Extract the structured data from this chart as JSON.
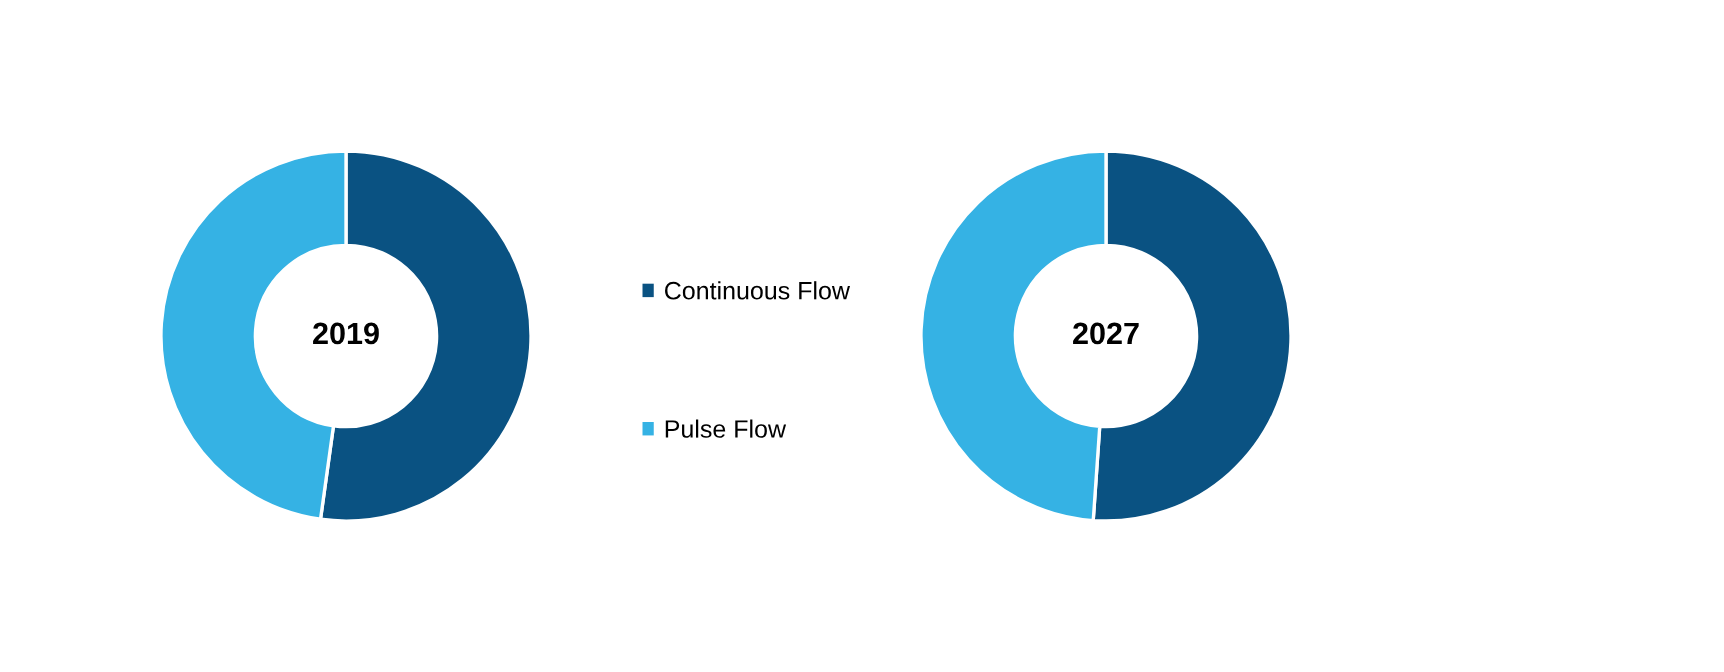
{
  "chart_data": [
    {
      "type": "donut",
      "title": "2019",
      "categories": [
        "Continuous Flow",
        "Pulse Flow"
      ],
      "values": [
        52.2,
        47.8
      ],
      "colors": [
        "#0a5282",
        "#35b2e4"
      ],
      "legend": "right"
    },
    {
      "type": "donut",
      "title": "2027",
      "values": [
        51.1,
        48.9
      ],
      "colors": [
        "#0a5282",
        "#35b2e4"
      ]
    }
  ]
}
